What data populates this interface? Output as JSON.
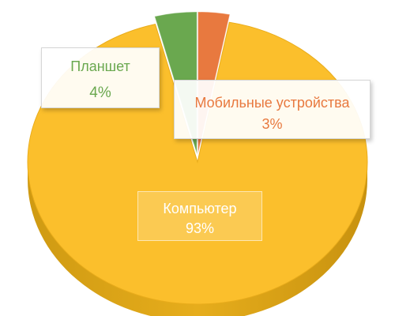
{
  "chart_data": {
    "type": "pie",
    "categories": [
      "Компьютер",
      "Планшет",
      "Мобильные устройства"
    ],
    "values": [
      93,
      4,
      3
    ],
    "labels": [
      "93%",
      "4%",
      "3%"
    ],
    "colors": [
      "#fbbf2c",
      "#6aa84f",
      "#e8793f"
    ],
    "title": "",
    "legend": "none",
    "style": "3d-exploded"
  }
}
